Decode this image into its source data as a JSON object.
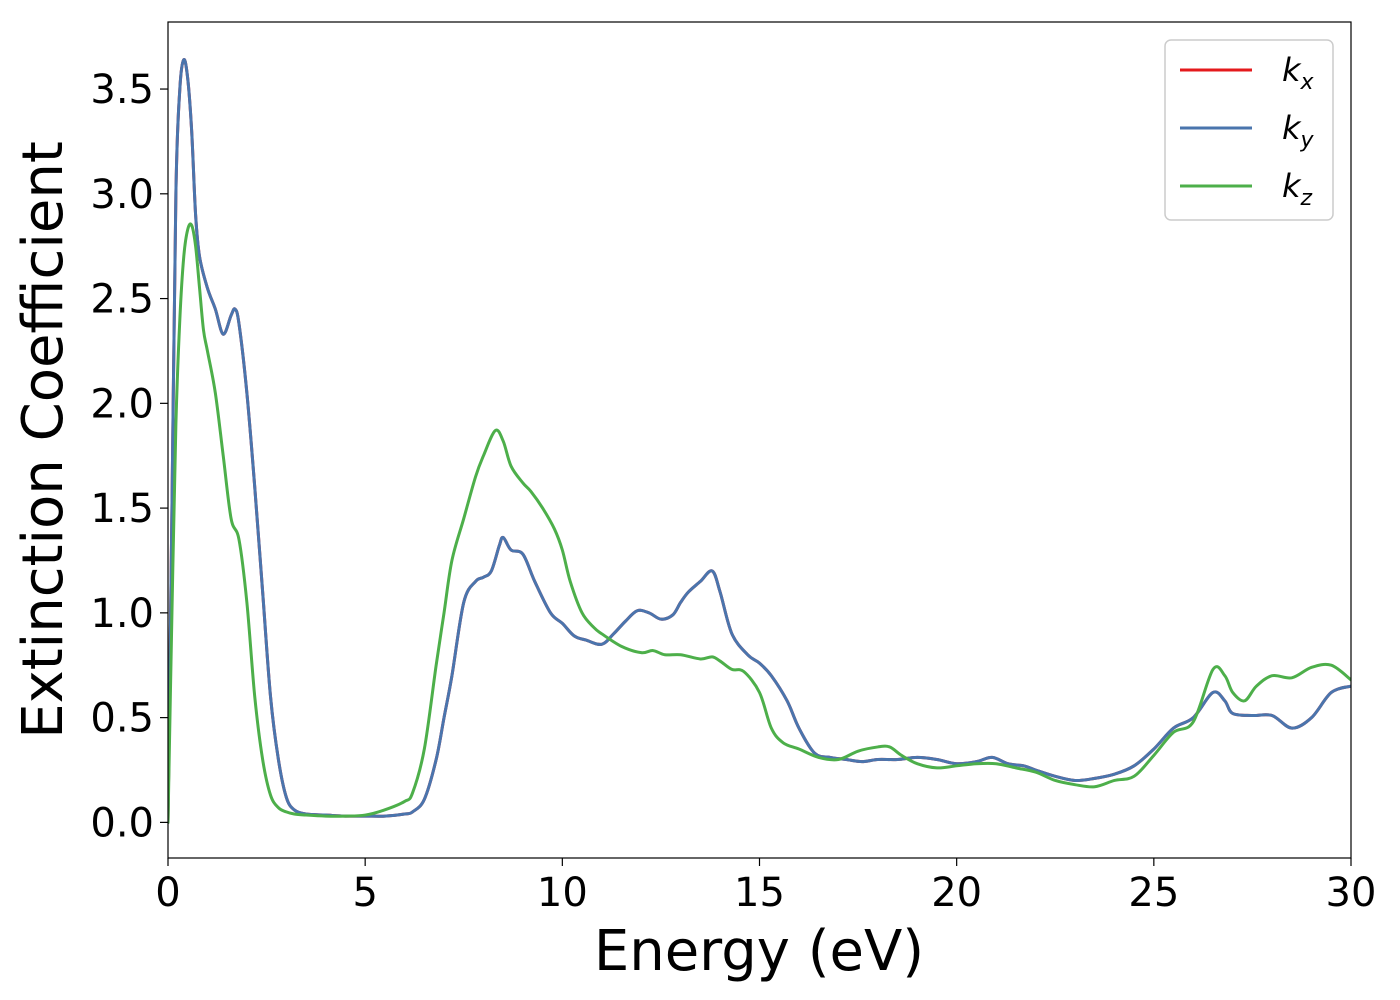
{
  "chart_data": {
    "type": "line",
    "title": "",
    "xlabel": "Energy (eV)",
    "ylabel": "Extinction Coefficient",
    "xlim": [
      0,
      30
    ],
    "ylim": [
      -0.17,
      3.82
    ],
    "xticks": [
      0,
      5,
      10,
      15,
      20,
      25,
      30
    ],
    "xtick_labels": [
      "0",
      "5",
      "10",
      "15",
      "20",
      "25",
      "30"
    ],
    "yticks": [
      0.0,
      0.5,
      1.0,
      1.5,
      2.0,
      2.5,
      3.0,
      3.5
    ],
    "ytick_labels": [
      "0.0",
      "0.5",
      "1.0",
      "1.5",
      "2.0",
      "2.5",
      "3.0",
      "3.5"
    ],
    "grid": false,
    "legend_position": "top-right",
    "series": [
      {
        "name": "k",
        "subscript": "x",
        "color": "#e41a1c",
        "x": [
          0,
          0.1,
          0.2,
          0.3,
          0.4,
          0.5,
          0.6,
          0.7,
          0.8,
          1.0,
          1.2,
          1.4,
          1.6,
          1.7,
          1.8,
          2.0,
          2.2,
          2.4,
          2.6,
          2.8,
          3.0,
          3.2,
          3.5,
          4,
          4.5,
          5,
          5.5,
          6,
          6.2,
          6.5,
          6.8,
          7,
          7.2,
          7.5,
          7.8,
          8,
          8.2,
          8.4,
          8.5,
          8.7,
          9,
          9.3,
          9.7,
          10,
          10.3,
          10.6,
          11,
          11.3,
          11.6,
          11.9,
          12.2,
          12.5,
          12.8,
          13,
          13.2,
          13.5,
          13.8,
          14,
          14.3,
          14.7,
          15,
          15.3,
          15.7,
          16,
          16.4,
          16.8,
          17.2,
          17.6,
          18,
          18.5,
          19,
          19.5,
          20,
          20.5,
          20.9,
          21.3,
          21.7,
          22,
          22.5,
          23,
          23.5,
          24,
          24.5,
          25,
          25.5,
          26,
          26.5,
          26.8,
          27,
          27.5,
          28,
          28.5,
          29,
          29.5,
          30
        ],
        "values": [
          0,
          1.5,
          3.0,
          3.5,
          3.64,
          3.55,
          3.3,
          2.9,
          2.7,
          2.55,
          2.45,
          2.33,
          2.42,
          2.45,
          2.38,
          2.05,
          1.6,
          1.1,
          0.6,
          0.3,
          0.12,
          0.06,
          0.04,
          0.035,
          0.03,
          0.03,
          0.03,
          0.04,
          0.05,
          0.11,
          0.3,
          0.5,
          0.7,
          1.05,
          1.15,
          1.17,
          1.2,
          1.32,
          1.36,
          1.3,
          1.28,
          1.15,
          1.0,
          0.95,
          0.89,
          0.87,
          0.85,
          0.9,
          0.96,
          1.01,
          1.0,
          0.97,
          0.99,
          1.05,
          1.1,
          1.15,
          1.2,
          1.1,
          0.9,
          0.8,
          0.76,
          0.7,
          0.58,
          0.45,
          0.33,
          0.31,
          0.3,
          0.29,
          0.3,
          0.3,
          0.31,
          0.3,
          0.28,
          0.29,
          0.31,
          0.28,
          0.27,
          0.25,
          0.22,
          0.2,
          0.21,
          0.23,
          0.27,
          0.35,
          0.45,
          0.5,
          0.62,
          0.58,
          0.52,
          0.51,
          0.51,
          0.45,
          0.5,
          0.62,
          0.65
        ]
      },
      {
        "name": "k",
        "subscript": "y",
        "color": "#4a75ad",
        "x": [
          0,
          0.1,
          0.2,
          0.3,
          0.4,
          0.5,
          0.6,
          0.7,
          0.8,
          1.0,
          1.2,
          1.4,
          1.6,
          1.7,
          1.8,
          2.0,
          2.2,
          2.4,
          2.6,
          2.8,
          3.0,
          3.2,
          3.5,
          4,
          4.5,
          5,
          5.5,
          6,
          6.2,
          6.5,
          6.8,
          7,
          7.2,
          7.5,
          7.8,
          8,
          8.2,
          8.4,
          8.5,
          8.7,
          9,
          9.3,
          9.7,
          10,
          10.3,
          10.6,
          11,
          11.3,
          11.6,
          11.9,
          12.2,
          12.5,
          12.8,
          13,
          13.2,
          13.5,
          13.8,
          14,
          14.3,
          14.7,
          15,
          15.3,
          15.7,
          16,
          16.4,
          16.8,
          17.2,
          17.6,
          18,
          18.5,
          19,
          19.5,
          20,
          20.5,
          20.9,
          21.3,
          21.7,
          22,
          22.5,
          23,
          23.5,
          24,
          24.5,
          25,
          25.5,
          26,
          26.5,
          26.8,
          27,
          27.5,
          28,
          28.5,
          29,
          29.5,
          30
        ],
        "values": [
          0,
          1.5,
          3.0,
          3.5,
          3.64,
          3.55,
          3.3,
          2.9,
          2.7,
          2.55,
          2.45,
          2.33,
          2.42,
          2.45,
          2.38,
          2.05,
          1.6,
          1.1,
          0.6,
          0.3,
          0.12,
          0.06,
          0.04,
          0.035,
          0.03,
          0.03,
          0.03,
          0.04,
          0.05,
          0.11,
          0.3,
          0.5,
          0.7,
          1.05,
          1.15,
          1.17,
          1.2,
          1.32,
          1.36,
          1.3,
          1.28,
          1.15,
          1.0,
          0.95,
          0.89,
          0.87,
          0.85,
          0.9,
          0.96,
          1.01,
          1.0,
          0.97,
          0.99,
          1.05,
          1.1,
          1.15,
          1.2,
          1.1,
          0.9,
          0.8,
          0.76,
          0.7,
          0.58,
          0.45,
          0.33,
          0.31,
          0.3,
          0.29,
          0.3,
          0.3,
          0.31,
          0.3,
          0.28,
          0.29,
          0.31,
          0.28,
          0.27,
          0.25,
          0.22,
          0.2,
          0.21,
          0.23,
          0.27,
          0.35,
          0.45,
          0.5,
          0.62,
          0.58,
          0.52,
          0.51,
          0.51,
          0.45,
          0.5,
          0.62,
          0.65
        ]
      },
      {
        "name": "k",
        "subscript": "z",
        "color": "#4daf4a",
        "x": [
          0,
          0.1,
          0.2,
          0.3,
          0.4,
          0.5,
          0.6,
          0.7,
          0.8,
          0.9,
          1.0,
          1.2,
          1.4,
          1.6,
          1.8,
          2.0,
          2.2,
          2.4,
          2.6,
          2.8,
          3.0,
          3.2,
          3.5,
          4,
          4.5,
          5,
          5.5,
          6,
          6.2,
          6.5,
          6.8,
          7,
          7.2,
          7.5,
          7.8,
          8,
          8.3,
          8.5,
          8.7,
          9,
          9.2,
          9.5,
          9.8,
          10,
          10.2,
          10.5,
          10.8,
          11,
          11.5,
          12,
          12.3,
          12.6,
          13,
          13.5,
          13.8,
          14,
          14.3,
          14.6,
          15,
          15.3,
          15.6,
          16,
          16.5,
          17,
          17.5,
          18,
          18.3,
          18.6,
          19,
          19.5,
          20,
          20.5,
          21,
          21.5,
          22,
          22.5,
          23,
          23.5,
          24,
          24.5,
          25,
          25.5,
          26,
          26.5,
          26.8,
          27,
          27.3,
          27.6,
          28,
          28.5,
          29,
          29.5,
          30
        ],
        "values": [
          0,
          1.0,
          1.9,
          2.4,
          2.7,
          2.83,
          2.85,
          2.75,
          2.55,
          2.35,
          2.25,
          2.05,
          1.75,
          1.45,
          1.35,
          1.05,
          0.6,
          0.3,
          0.13,
          0.07,
          0.05,
          0.04,
          0.035,
          0.03,
          0.03,
          0.035,
          0.06,
          0.1,
          0.14,
          0.35,
          0.75,
          1.0,
          1.25,
          1.45,
          1.65,
          1.75,
          1.87,
          1.82,
          1.7,
          1.62,
          1.58,
          1.5,
          1.4,
          1.3,
          1.15,
          1.0,
          0.93,
          0.9,
          0.84,
          0.81,
          0.82,
          0.8,
          0.8,
          0.78,
          0.79,
          0.77,
          0.73,
          0.72,
          0.62,
          0.45,
          0.38,
          0.35,
          0.31,
          0.3,
          0.34,
          0.36,
          0.36,
          0.32,
          0.28,
          0.26,
          0.27,
          0.28,
          0.28,
          0.26,
          0.24,
          0.2,
          0.18,
          0.17,
          0.2,
          0.22,
          0.32,
          0.43,
          0.48,
          0.73,
          0.7,
          0.62,
          0.58,
          0.65,
          0.7,
          0.69,
          0.74,
          0.75,
          0.68
        ]
      }
    ]
  }
}
